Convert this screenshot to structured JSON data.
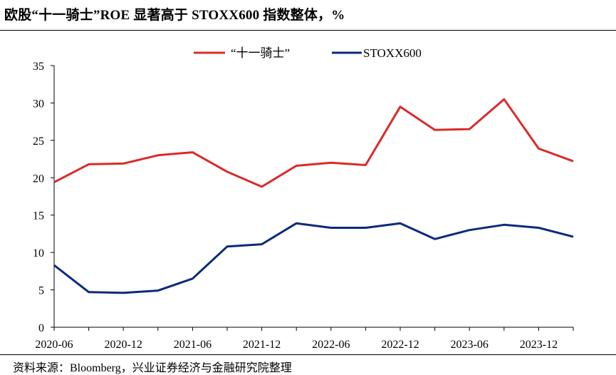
{
  "header": {
    "title": "欧股“十一骑士”ROE 显著高于 STOXX600 指数整体，%"
  },
  "footer": {
    "source": "资料来源：Bloomberg，兴业证券经济与金融研究院整理"
  },
  "chart_data": {
    "type": "line",
    "title": "欧股“十一骑士”ROE 显著高于 STOXX600 指数整体，%",
    "xlabel": "",
    "ylabel": "",
    "ylim": [
      0,
      35
    ],
    "yticks": [
      0,
      5,
      10,
      15,
      20,
      25,
      30,
      35
    ],
    "x": [
      "2020-06",
      "2020-09",
      "2020-12",
      "2021-03",
      "2021-06",
      "2021-09",
      "2021-12",
      "2022-03",
      "2022-06",
      "2022-09",
      "2022-12",
      "2023-03",
      "2023-06",
      "2023-09",
      "2023-12",
      "2024-03"
    ],
    "xtick_labels": [
      "2020-06",
      "2020-12",
      "2021-06",
      "2021-12",
      "2022-06",
      "2022-12",
      "2023-06",
      "2023-12"
    ],
    "legend_position": "top-center",
    "grid": false,
    "series": [
      {
        "name": "“十一骑士”",
        "color": "#d92b2b",
        "values": [
          19.4,
          21.8,
          21.9,
          23.0,
          23.4,
          20.8,
          18.8,
          21.6,
          22.0,
          21.7,
          29.5,
          26.4,
          26.5,
          30.5,
          23.9,
          22.2
        ]
      },
      {
        "name": "STOXX600",
        "color": "#0b2a7a",
        "values": [
          8.3,
          4.7,
          4.6,
          4.9,
          6.5,
          10.8,
          11.1,
          13.9,
          13.3,
          13.3,
          13.9,
          11.8,
          13.0,
          13.7,
          13.3,
          12.1
        ]
      }
    ]
  }
}
